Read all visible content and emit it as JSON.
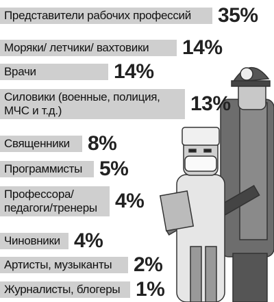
{
  "items": [
    {
      "label": "Представители рабочих профессий",
      "value": "35%"
    },
    {
      "label": "Моряки/ летчики/ вахтовики",
      "value": "14%"
    },
    {
      "label": "Врачи",
      "value": "14%"
    },
    {
      "label": "Силовики (военные, полиция,\nМЧС и т.д.)",
      "value": "13%"
    },
    {
      "label": "Священники",
      "value": "8%"
    },
    {
      "label": "Программисты",
      "value": "5%"
    },
    {
      "label": "Профессора/\nпедагоги/тренеры",
      "value": "4%"
    },
    {
      "label": "Чиновники",
      "value": "4%"
    },
    {
      "label": "Артисты, музыканты",
      "value": "2%"
    },
    {
      "label": "Журналисты, блогеры",
      "value": "1%"
    }
  ]
}
